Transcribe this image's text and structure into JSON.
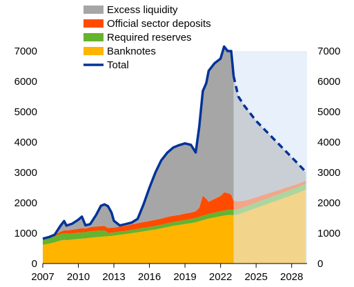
{
  "chart_data": {
    "type": "area",
    "title": "",
    "xlabel": "",
    "ylabel": "",
    "xlim": [
      2007,
      2029.3
    ],
    "ylim": [
      0,
      7000
    ],
    "x_ticks": [
      "2007",
      "2010",
      "2013",
      "2016",
      "2019",
      "2022",
      "2025",
      "2028"
    ],
    "y_ticks": [
      "0",
      "1000",
      "2000",
      "3000",
      "4000",
      "5000",
      "6000",
      "7000"
    ],
    "projection_start": 2023.1,
    "grid": false,
    "legend_position": "top-center",
    "colors": {
      "excess_liquidity": "#a6a6a6",
      "official_sector_deposits": "#ff4b00",
      "required_reserves": "#65b32e",
      "banknotes": "#ffb400",
      "total": "#003299",
      "projection_shade": "#e8f0fb"
    },
    "x": [
      2007.0,
      2007.5,
      2008.0,
      2008.5,
      2008.8,
      2009.0,
      2009.5,
      2010.0,
      2010.3,
      2010.6,
      2011.0,
      2011.5,
      2011.9,
      2012.2,
      2012.5,
      2012.8,
      2013.0,
      2013.5,
      2014.0,
      2014.5,
      2015.0,
      2015.5,
      2016.0,
      2016.5,
      2017.0,
      2017.5,
      2018.0,
      2018.5,
      2019.0,
      2019.5,
      2019.9,
      2020.2,
      2020.5,
      2020.8,
      2021.0,
      2021.5,
      2022.0,
      2022.3,
      2022.6,
      2022.9,
      2023.1,
      2023.5,
      2024.0,
      2024.5,
      2025.0,
      2025.5,
      2026.0,
      2026.5,
      2027.0,
      2027.5,
      2028.0,
      2028.5,
      2029.0,
      2029.2
    ],
    "series": [
      {
        "name": "Banknotes",
        "values": [
          620,
          650,
          700,
          760,
          780,
          770,
          790,
          810,
          820,
          830,
          850,
          870,
          880,
          890,
          900,
          910,
          920,
          950,
          970,
          1000,
          1030,
          1060,
          1090,
          1120,
          1160,
          1200,
          1240,
          1270,
          1300,
          1330,
          1360,
          1390,
          1430,
          1460,
          1480,
          1520,
          1560,
          1580,
          1600,
          1600,
          1600,
          1620,
          1690,
          1760,
          1830,
          1900,
          1970,
          2040,
          2110,
          2180,
          2250,
          2320,
          2400,
          2440
        ]
      },
      {
        "name": "Required reserves",
        "values": [
          180,
          190,
          200,
          210,
          210,
          210,
          205,
          205,
          205,
          205,
          210,
          210,
          210,
          200,
          110,
          105,
          105,
          105,
          105,
          110,
          110,
          115,
          115,
          120,
          120,
          125,
          125,
          130,
          135,
          140,
          140,
          145,
          150,
          150,
          155,
          160,
          165,
          165,
          170,
          170,
          170,
          175,
          175,
          180,
          180,
          185,
          185,
          190,
          190,
          195,
          195,
          200,
          200,
          200
        ]
      },
      {
        "name": "Official sector deposits",
        "values": [
          20,
          30,
          50,
          80,
          100,
          110,
          120,
          130,
          140,
          120,
          140,
          140,
          140,
          150,
          160,
          170,
          160,
          160,
          170,
          180,
          190,
          190,
          200,
          200,
          200,
          210,
          210,
          200,
          210,
          210,
          220,
          300,
          650,
          520,
          400,
          450,
          500,
          600,
          550,
          500,
          300,
          250,
          200,
          180,
          170,
          160,
          150,
          140,
          130,
          120,
          110,
          100,
          90,
          90
        ]
      },
      {
        "name": "Excess liquidity",
        "values": [
          0,
          0,
          0,
          200,
          310,
          160,
          200,
          300,
          380,
          105,
          100,
          380,
          670,
          710,
          720,
          495,
          225,
          40,
          55,
          60,
          140,
          585,
          1095,
          1560,
          1920,
          2115,
          2245,
          2300,
          2315,
          2230,
          1940,
          2665,
          3450,
          3820,
          4315,
          4470,
          4525,
          4855,
          4680,
          4730,
          4110,
          3455,
          3135,
          2830,
          2520,
          2255,
          1995,
          1730,
          1470,
          1205,
          945,
          680,
          410,
          270
        ]
      }
    ],
    "total": {
      "name": "Total",
      "values": [
        820,
        870,
        950,
        1250,
        1400,
        1250,
        1315,
        1445,
        1545,
        1260,
        1300,
        1600,
        1900,
        1950,
        1890,
        1680,
        1410,
        1255,
        1300,
        1350,
        1470,
        1950,
        2500,
        3000,
        3400,
        3650,
        3820,
        3900,
        3960,
        3910,
        3660,
        4500,
        5680,
        5950,
        6350,
        6600,
        6750,
        7200,
        7000,
        7000,
        6180,
        5500,
        5200,
        4950,
        4700,
        4500,
        4300,
        4100,
        3900,
        3700,
        3500,
        3300,
        3100,
        3000
      ]
    }
  },
  "legend": [
    {
      "label": "Excess liquidity"
    },
    {
      "label": "Official sector deposits"
    },
    {
      "label": "Required reserves"
    },
    {
      "label": "Banknotes"
    },
    {
      "label": "Total"
    }
  ]
}
